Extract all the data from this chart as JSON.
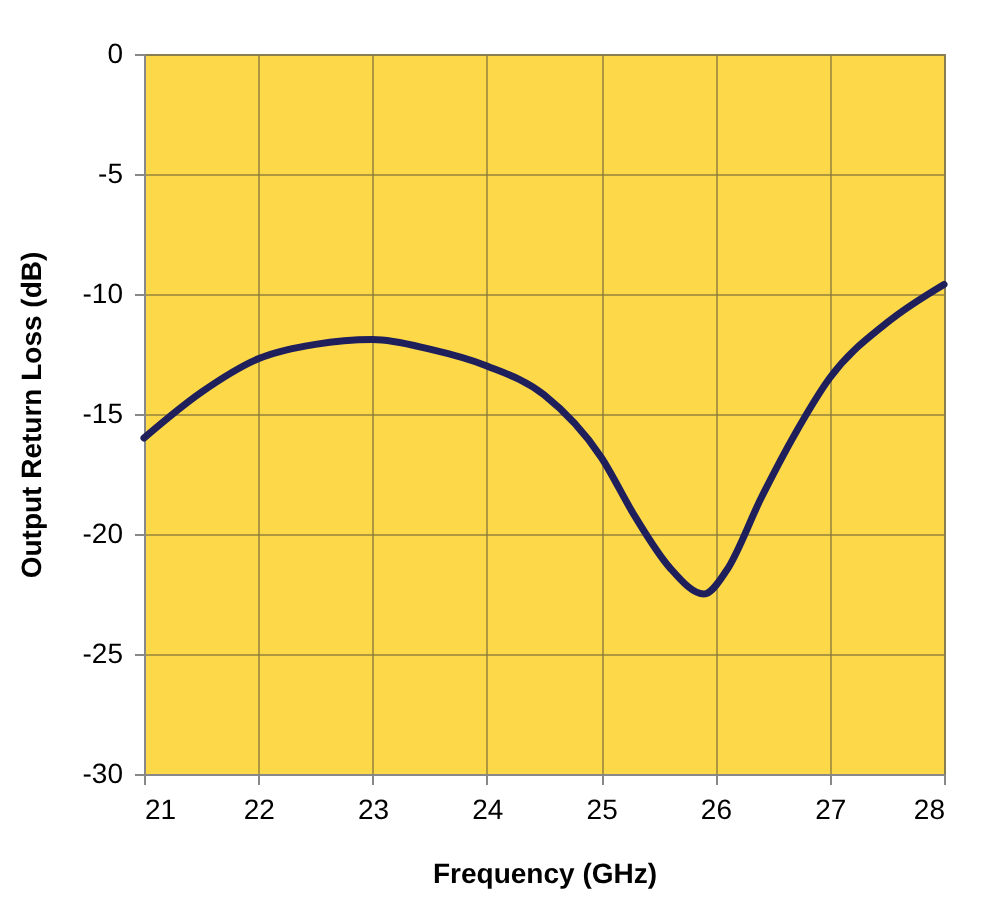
{
  "chart_data": {
    "type": "line",
    "xlabel": "Frequency (GHz)",
    "ylabel": "Output Return Loss (dB)",
    "x": [
      21,
      21.5,
      22,
      22.5,
      23,
      23.5,
      24,
      24.5,
      25,
      25.3,
      25.6,
      25.9,
      26.1,
      26.4,
      26.7,
      27,
      27.5,
      28
    ],
    "series": [
      {
        "color": "#1f1f5c",
        "values": [
          -16,
          -14.1,
          -12.7,
          -12.1,
          -11.9,
          -12.3,
          -13,
          -14.2,
          -16.8,
          -19.3,
          -21.4,
          -22.5,
          -21.5,
          -18.5,
          -15.8,
          -13.5,
          -11.2,
          -9.6
        ]
      }
    ],
    "xlim": [
      21,
      28
    ],
    "xticks": [
      21,
      22,
      23,
      24,
      25,
      26,
      27,
      28
    ],
    "ylim": [
      -30,
      0
    ],
    "yticks": [
      -30,
      -25,
      -20,
      -15,
      -10,
      -5,
      0
    ],
    "grid": true,
    "marker": "none",
    "line_style": "solid"
  }
}
